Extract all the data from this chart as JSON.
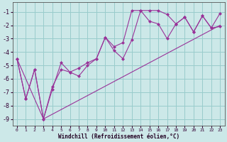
{
  "xlabel": "Windchill (Refroidissement éolien,°C)",
  "bg_color": "#cce8e8",
  "line_color": "#993399",
  "grid_color": "#99cccc",
  "xlim": [
    -0.5,
    23.5
  ],
  "ylim": [
    -9.5,
    -0.3
  ],
  "yticks": [
    -9,
    -8,
    -7,
    -6,
    -5,
    -4,
    -3,
    -2,
    -1
  ],
  "xticks": [
    0,
    1,
    2,
    3,
    4,
    5,
    6,
    7,
    8,
    9,
    10,
    11,
    12,
    13,
    14,
    15,
    16,
    17,
    18,
    19,
    20,
    21,
    22,
    23
  ],
  "series1_x": [
    0,
    1,
    2,
    3,
    4,
    5,
    6,
    7,
    8,
    9,
    10,
    11,
    12,
    13,
    14,
    15,
    16,
    17,
    18,
    19,
    20,
    21,
    22,
    23
  ],
  "series1_y": [
    -4.5,
    -7.5,
    -5.3,
    -9.0,
    -6.8,
    -4.8,
    -5.5,
    -5.2,
    -4.8,
    -4.5,
    -2.9,
    -3.6,
    -3.3,
    -0.9,
    -0.9,
    -0.9,
    -0.9,
    -1.2,
    -1.9,
    -1.4,
    -2.5,
    -1.3,
    -2.2,
    -1.1
  ],
  "series2_x": [
    0,
    1,
    2,
    3,
    4,
    5,
    6,
    7,
    8,
    9,
    10,
    11,
    12,
    13,
    14,
    15,
    16,
    17,
    18,
    19,
    20,
    21,
    22,
    23
  ],
  "series2_y": [
    -4.5,
    -7.5,
    -5.3,
    -9.0,
    -6.6,
    -5.3,
    -5.5,
    -5.8,
    -5.0,
    -4.5,
    -2.9,
    -3.9,
    -4.5,
    -3.1,
    -0.9,
    -1.7,
    -1.9,
    -3.0,
    -1.9,
    -1.4,
    -2.5,
    -1.3,
    -2.2,
    -2.1
  ],
  "series3_x": [
    0,
    3,
    23
  ],
  "series3_y": [
    -4.5,
    -9.0,
    -2.0
  ]
}
